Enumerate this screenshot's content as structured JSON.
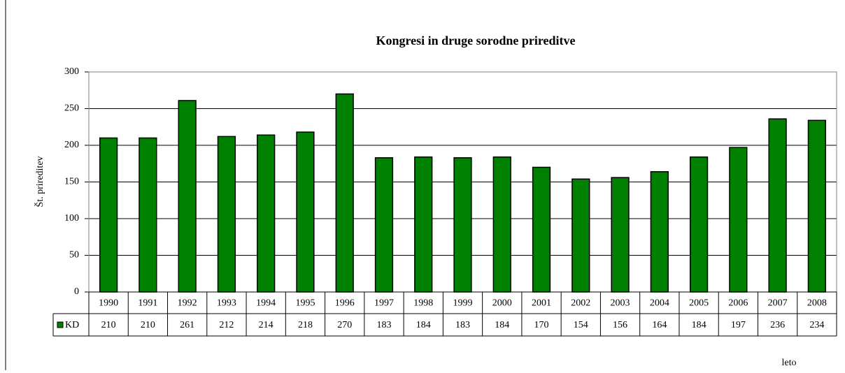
{
  "chart_data": {
    "type": "bar",
    "title": "Kongresi in druge sorodne prireditve",
    "y_label": "Št. prireditev",
    "x_label": "leto",
    "categories": [
      "1990",
      "1991",
      "1992",
      "1993",
      "1994",
      "1995",
      "1996",
      "1997",
      "1998",
      "1999",
      "2000",
      "2001",
      "2002",
      "2003",
      "2004",
      "2005",
      "2006",
      "2007",
      "2008"
    ],
    "series": [
      {
        "name": "KD",
        "color": "#008000",
        "values": [
          210,
          210,
          261,
          212,
          214,
          218,
          270,
          183,
          184,
          183,
          184,
          170,
          154,
          156,
          164,
          184,
          197,
          236,
          234
        ]
      }
    ],
    "ylim": [
      0,
      300
    ],
    "yticks": [
      0,
      50,
      100,
      150,
      200,
      250,
      300
    ],
    "grid": true
  }
}
